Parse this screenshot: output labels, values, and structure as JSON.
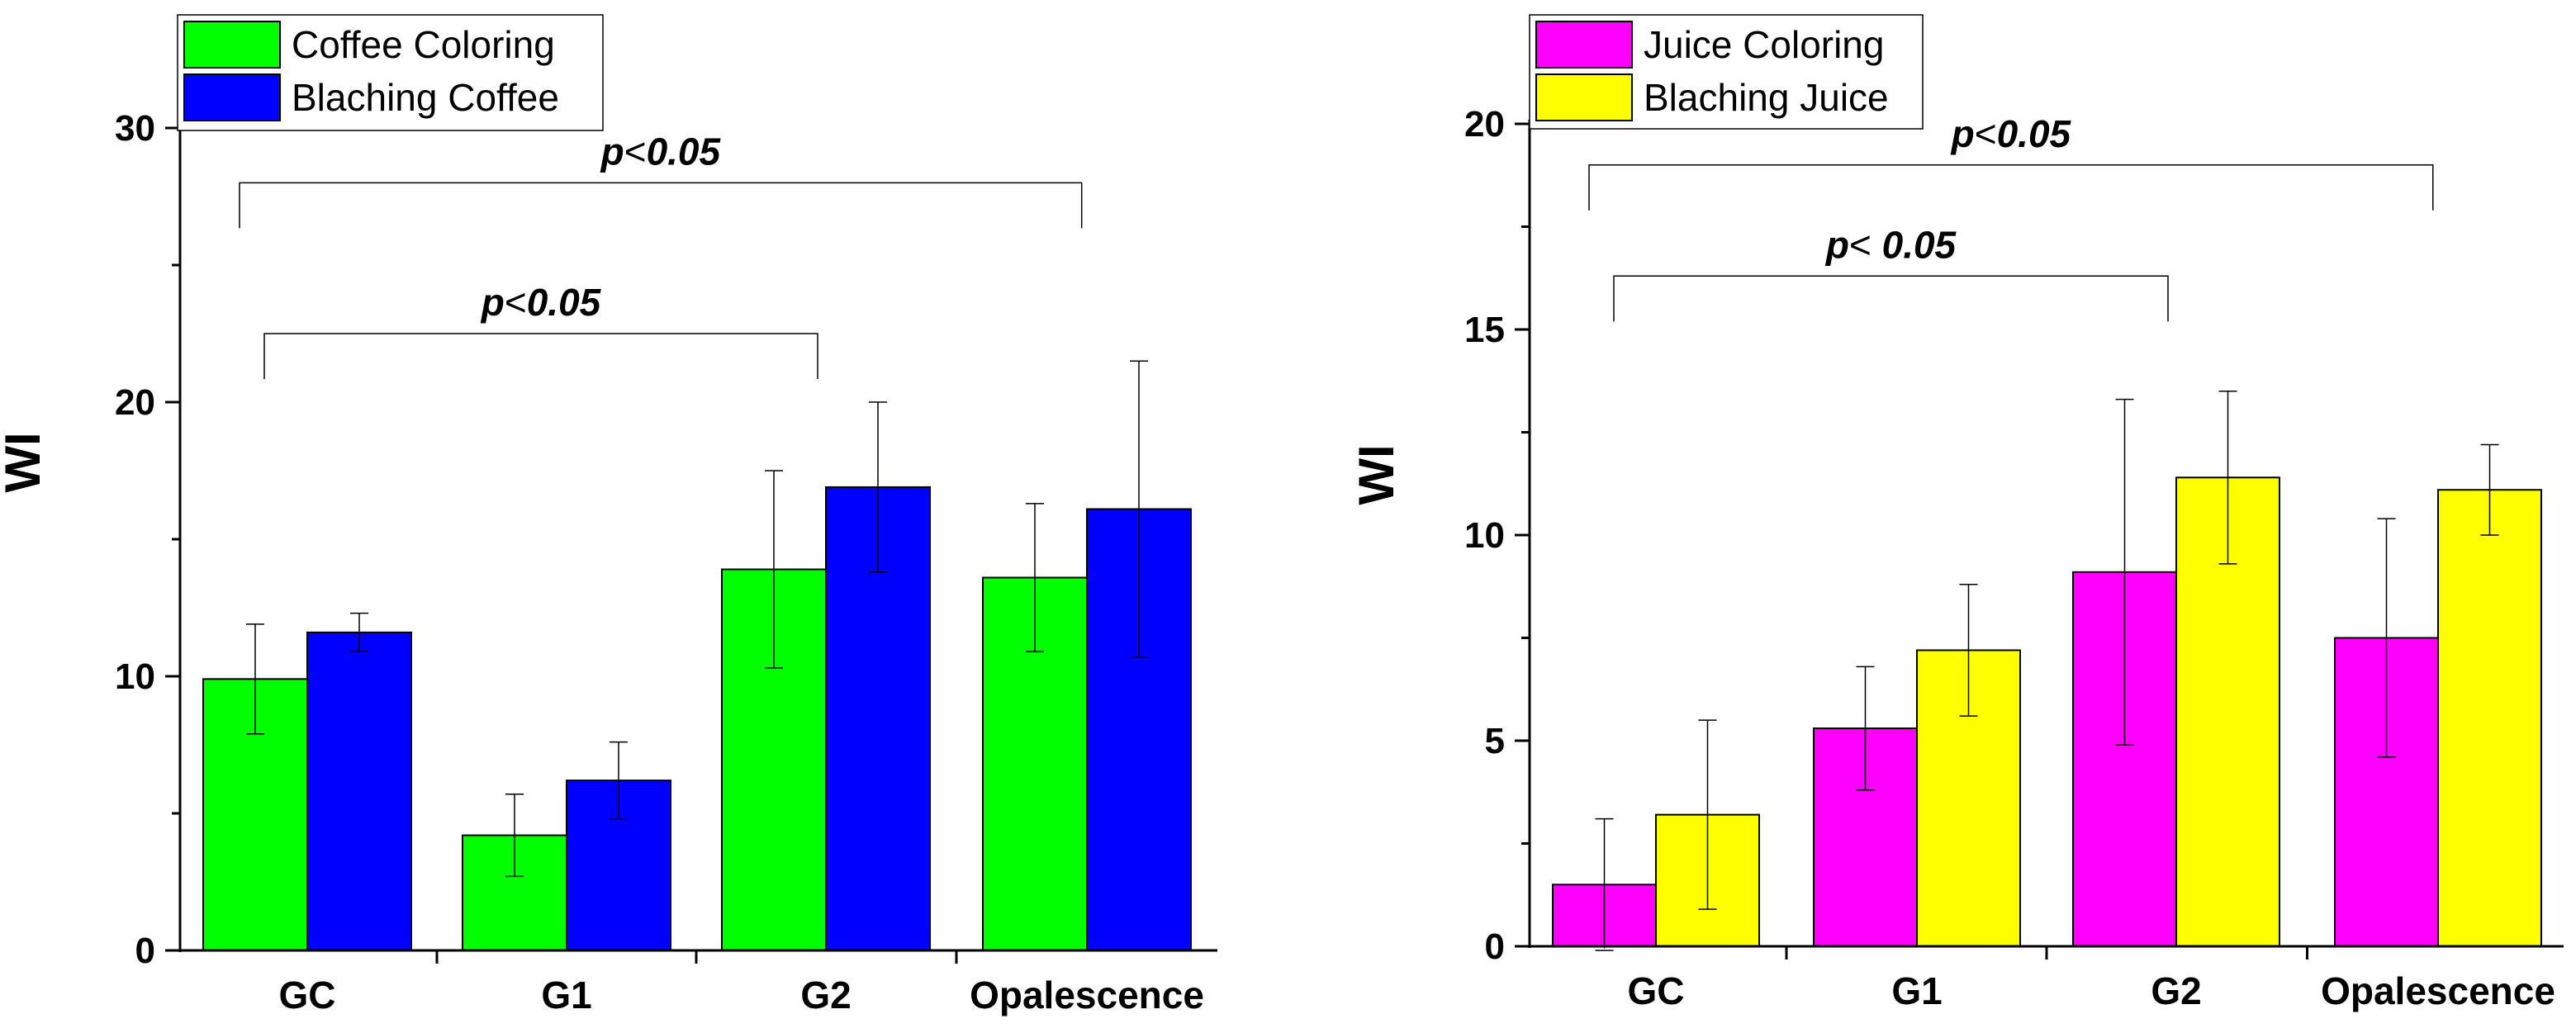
{
  "chart_data": [
    {
      "type": "bar",
      "title": "",
      "xlabel": "",
      "ylabel": "WI",
      "ylim": [
        0,
        30
      ],
      "yticks": [
        0,
        10,
        20,
        30
      ],
      "categories": [
        "GC",
        "G1",
        "G2",
        "Opalescence"
      ],
      "series": [
        {
          "name": "Coffee Coloring",
          "color": "#00ff00",
          "values": [
            9.9,
            4.2,
            13.9,
            13.6
          ],
          "errors": [
            2.0,
            1.5,
            3.6,
            2.7
          ]
        },
        {
          "name": "Blaching Coffee",
          "color": "#0000ff",
          "values": [
            11.6,
            6.2,
            16.9,
            16.1
          ],
          "errors": [
            0.7,
            1.4,
            3.1,
            5.4
          ]
        }
      ],
      "legend_position": "top-left",
      "annotations": [
        {
          "label": "p",
          "op": "<",
          "value": "0.05",
          "from": "GC",
          "to": "Opalescence",
          "level": 28.0
        },
        {
          "label": "p",
          "op": "<",
          "value": "0.05",
          "from": "GC",
          "to": "G2",
          "level": 22.5
        }
      ]
    },
    {
      "type": "bar",
      "title": "",
      "xlabel": "",
      "ylabel": "WI",
      "ylim": [
        0,
        20
      ],
      "yticks": [
        0,
        5,
        10,
        15,
        20
      ],
      "categories": [
        "GC",
        "G1",
        "G2",
        "Opalescence"
      ],
      "series": [
        {
          "name": "Juice Coloring",
          "color": "#ff00ff",
          "values": [
            1.5,
            5.3,
            9.1,
            7.5
          ],
          "errors": [
            1.6,
            1.5,
            4.2,
            2.9
          ]
        },
        {
          "name": "Blaching Juice",
          "color": "#ffff00",
          "values": [
            3.2,
            7.2,
            11.4,
            11.1
          ],
          "errors": [
            2.3,
            1.6,
            2.1,
            1.1
          ]
        }
      ],
      "legend_position": "top-left",
      "annotations": [
        {
          "label": "p",
          "op": "<",
          "value": "0.05",
          "from": "GC",
          "to": "Opalescence",
          "level": 19.0
        },
        {
          "label": "p",
          "op": "< ",
          "value": "0.05",
          "from": "GC",
          "to": "G2",
          "level": 16.3
        }
      ]
    }
  ]
}
